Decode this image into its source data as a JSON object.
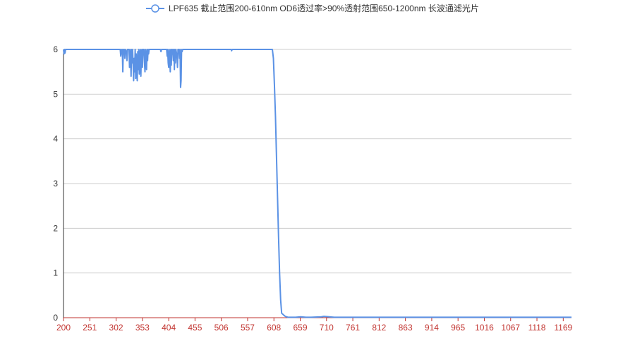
{
  "chart_data": {
    "type": "line",
    "legend": {
      "position": "top-center",
      "entries": [
        "LPF635 截止范围200-610nm OD6透过率>90%透射范围650-1200nm 长波通滤光片"
      ]
    },
    "xlabel": "",
    "ylabel": "",
    "xlim": [
      200,
      1185
    ],
    "ylim": [
      0,
      6
    ],
    "x_ticks": [
      "200",
      "251",
      "302",
      "353",
      "404",
      "455",
      "506",
      "557",
      "608",
      "659",
      "710",
      "761",
      "812",
      "863",
      "914",
      "965",
      "1016",
      "1067",
      "1118",
      "1169"
    ],
    "y_ticks": [
      "0",
      "1",
      "2",
      "3",
      "4",
      "5",
      "6"
    ],
    "grid": {
      "horizontal": true,
      "vertical": false
    },
    "colors": {
      "series": "#5b92e5",
      "x_axis": "#c23531",
      "x_tick_labels": "#c23531",
      "grid": "#cccccc",
      "text": "#333333"
    },
    "series": [
      {
        "name": "LPF635 截止范围200-610nm OD6透过率>90%透射范围650-1200nm 长波通滤光片",
        "points": [
          [
            200,
            6
          ],
          [
            201,
            5.9
          ],
          [
            202,
            6
          ],
          [
            203,
            5.92
          ],
          [
            204,
            6
          ],
          [
            205,
            6
          ],
          [
            310,
            6
          ],
          [
            311,
            5.85
          ],
          [
            312,
            6
          ],
          [
            313,
            5.9
          ],
          [
            314,
            6
          ],
          [
            315,
            5.5
          ],
          [
            316,
            6
          ],
          [
            318,
            6
          ],
          [
            319,
            5.8
          ],
          [
            320,
            6
          ],
          [
            322,
            5.95
          ],
          [
            323,
            5.75
          ],
          [
            324,
            6
          ],
          [
            327,
            6
          ],
          [
            328,
            5.6
          ],
          [
            329,
            6
          ],
          [
            330,
            5.85
          ],
          [
            331,
            5.4
          ],
          [
            332,
            6
          ],
          [
            333,
            5.7
          ],
          [
            334,
            6
          ],
          [
            335,
            5.65
          ],
          [
            336,
            5.3
          ],
          [
            337,
            5.8
          ],
          [
            338,
            5.5
          ],
          [
            339,
            6
          ],
          [
            340,
            5.35
          ],
          [
            341,
            5.9
          ],
          [
            342,
            5.6
          ],
          [
            343,
            5.3
          ],
          [
            344,
            5.95
          ],
          [
            345,
            5.55
          ],
          [
            346,
            6
          ],
          [
            347,
            5.45
          ],
          [
            348,
            5.8
          ],
          [
            349,
            6
          ],
          [
            350,
            5.4
          ],
          [
            351,
            5.9
          ],
          [
            352,
            6
          ],
          [
            353,
            5.6
          ],
          [
            354,
            6
          ],
          [
            356,
            6
          ],
          [
            357,
            5.7
          ],
          [
            358,
            5.5
          ],
          [
            359,
            6
          ],
          [
            360,
            5.8
          ],
          [
            361,
            5.55
          ],
          [
            362,
            6
          ],
          [
            363,
            5.75
          ],
          [
            364,
            6
          ],
          [
            365,
            5.9
          ],
          [
            366,
            6
          ],
          [
            367,
            6
          ],
          [
            388,
            6
          ],
          [
            389,
            5.95
          ],
          [
            390,
            6
          ],
          [
            400,
            6
          ],
          [
            401,
            5.85
          ],
          [
            402,
            6
          ],
          [
            403,
            5.7
          ],
          [
            404,
            5.6
          ],
          [
            405,
            6
          ],
          [
            406,
            5.8
          ],
          [
            407,
            5.5
          ],
          [
            408,
            6
          ],
          [
            409,
            5.65
          ],
          [
            410,
            6
          ],
          [
            411,
            5.9
          ],
          [
            412,
            6
          ],
          [
            413,
            5.75
          ],
          [
            414,
            6
          ],
          [
            415,
            5.55
          ],
          [
            416,
            6
          ],
          [
            417,
            5.7
          ],
          [
            418,
            6
          ],
          [
            420,
            5.85
          ],
          [
            421,
            5.6
          ],
          [
            422,
            6
          ],
          [
            424,
            6
          ],
          [
            425,
            5.8
          ],
          [
            426,
            6
          ],
          [
            427,
            5.15
          ],
          [
            428,
            5.3
          ],
          [
            429,
            6
          ],
          [
            430,
            5.95
          ],
          [
            431,
            6
          ],
          [
            525,
            6
          ],
          [
            526,
            5.97
          ],
          [
            527,
            6
          ],
          [
            605,
            6
          ],
          [
            607,
            5.8
          ],
          [
            609,
            5.2
          ],
          [
            611,
            4.5
          ],
          [
            613,
            3.6
          ],
          [
            615,
            2.7
          ],
          [
            617,
            1.8
          ],
          [
            619,
            1
          ],
          [
            621,
            0.4
          ],
          [
            623,
            0.1
          ],
          [
            626,
            0.07
          ],
          [
            630,
            0.03
          ],
          [
            635,
            0.01
          ],
          [
            650,
            0.01
          ],
          [
            660,
            0.02
          ],
          [
            670,
            0.01
          ],
          [
            680,
            0.01
          ],
          [
            700,
            0.02
          ],
          [
            705,
            0.03
          ],
          [
            715,
            0.02
          ],
          [
            725,
            0.01
          ],
          [
            740,
            0.01
          ],
          [
            760,
            0.01
          ],
          [
            780,
            0.01
          ],
          [
            800,
            0.01
          ],
          [
            850,
            0.01
          ],
          [
            900,
            0.01
          ],
          [
            950,
            0.01
          ],
          [
            1000,
            0.01
          ],
          [
            1050,
            0.01
          ],
          [
            1100,
            0.01
          ],
          [
            1150,
            0.01
          ],
          [
            1185,
            0.01
          ]
        ]
      }
    ]
  }
}
